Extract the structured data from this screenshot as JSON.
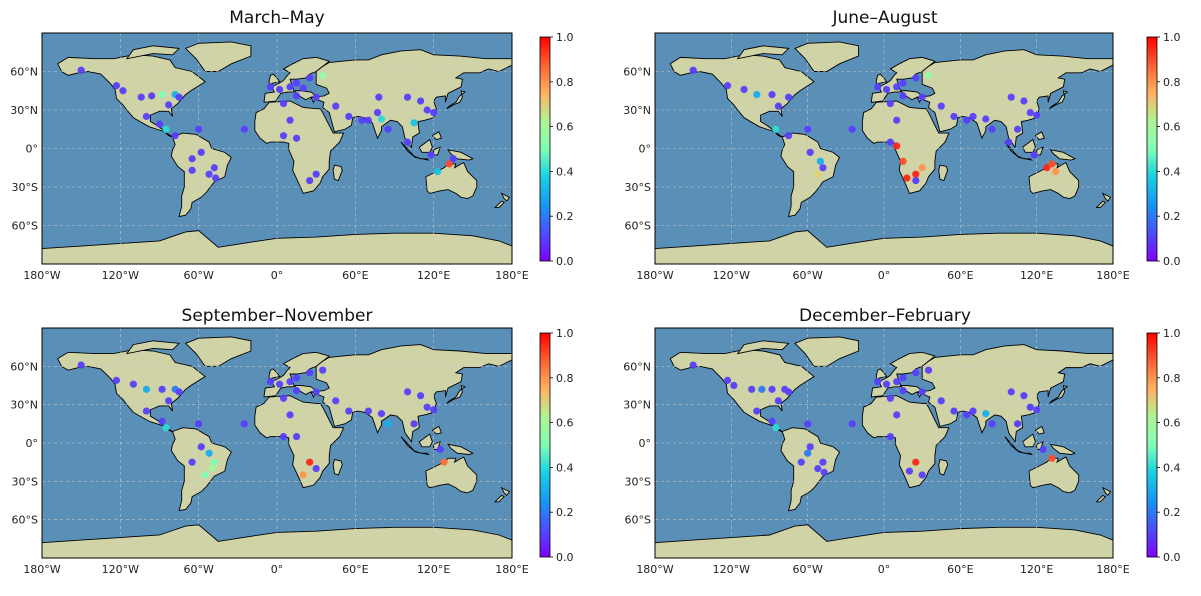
{
  "colors": {
    "ocean": "#5a8fb8",
    "land": "#cfd3a6",
    "ice": "#eef3f8",
    "coast": "#000000",
    "grid": "#c8c8c8"
  },
  "axes": {
    "lon_ticks": [
      -180,
      -120,
      -60,
      0,
      60,
      120,
      180
    ],
    "lon_labels": [
      "180°W",
      "120°W",
      "60°W",
      "0°",
      "60°E",
      "120°E",
      "180°E"
    ],
    "lat_ticks": [
      60,
      30,
      0,
      -30,
      -60
    ],
    "lat_labels": [
      "60°N",
      "30°N",
      "0°",
      "30°S",
      "60°S"
    ],
    "lon_range": [
      -180,
      180
    ],
    "lat_range": [
      -90,
      90
    ]
  },
  "colorbar": {
    "cmap": "rainbow",
    "range": [
      0,
      1
    ],
    "ticks": [
      0.0,
      0.2,
      0.4,
      0.6,
      0.8,
      1.0
    ],
    "labels": [
      "0.0",
      "0.2",
      "0.4",
      "0.6",
      "0.8",
      "1.0"
    ]
  },
  "chart_data": [
    {
      "type": "scatter",
      "title": "March–May",
      "points": [
        [
          -150,
          61,
          0.1
        ],
        [
          -123,
          49,
          0.1
        ],
        [
          -118,
          45,
          0.1
        ],
        [
          -104,
          40,
          0.1
        ],
        [
          -96,
          41,
          0.1
        ],
        [
          -88,
          42,
          0.5
        ],
        [
          -78,
          42,
          0.3
        ],
        [
          -83,
          34,
          0.1
        ],
        [
          -75,
          40,
          0.1
        ],
        [
          -100,
          25,
          0.1
        ],
        [
          -90,
          19,
          0.1
        ],
        [
          -85,
          15,
          0.4
        ],
        [
          -78,
          10,
          0.1
        ],
        [
          -60,
          15,
          0.1
        ],
        [
          -25,
          15,
          0.1
        ],
        [
          -58,
          -3,
          0.1
        ],
        [
          -65,
          -8,
          0.1
        ],
        [
          -48,
          -15,
          0.1
        ],
        [
          -52,
          -20,
          0.1
        ],
        [
          -47,
          -23,
          0.1
        ],
        [
          -65,
          -17,
          0.1
        ],
        [
          -5,
          48,
          0.1
        ],
        [
          2,
          46,
          0.1
        ],
        [
          10,
          48,
          0.1
        ],
        [
          15,
          51,
          0.1
        ],
        [
          20,
          47,
          0.1
        ],
        [
          25,
          55,
          0.1
        ],
        [
          35,
          57,
          0.55
        ],
        [
          30,
          40,
          0.1
        ],
        [
          15,
          41,
          0.1
        ],
        [
          5,
          35,
          0.1
        ],
        [
          10,
          22,
          0.1
        ],
        [
          5,
          10,
          0.1
        ],
        [
          15,
          8,
          0.1
        ],
        [
          30,
          -20,
          0.1
        ],
        [
          25,
          -25,
          0.1
        ],
        [
          55,
          25,
          0.1
        ],
        [
          45,
          33,
          0.1
        ],
        [
          65,
          22,
          0.1
        ],
        [
          70,
          22,
          0.1
        ],
        [
          77,
          28,
          0.1
        ],
        [
          80,
          23,
          0.4
        ],
        [
          85,
          15,
          0.1
        ],
        [
          78,
          40,
          0.1
        ],
        [
          100,
          40,
          0.1
        ],
        [
          110,
          37,
          0.1
        ],
        [
          115,
          30,
          0.1
        ],
        [
          120,
          28,
          0.1
        ],
        [
          105,
          20,
          0.35
        ],
        [
          100,
          5,
          0.1
        ],
        [
          118,
          -5,
          0.1
        ],
        [
          132,
          -12,
          0.9
        ],
        [
          123,
          -18,
          0.35
        ],
        [
          135,
          -8,
          0.1
        ]
      ]
    },
    {
      "type": "scatter",
      "title": "June–August",
      "points": [
        [
          -150,
          61,
          0.1
        ],
        [
          -123,
          49,
          0.1
        ],
        [
          -110,
          46,
          0.1
        ],
        [
          -100,
          42,
          0.3
        ],
        [
          -88,
          42,
          0.1
        ],
        [
          -75,
          40,
          0.1
        ],
        [
          -83,
          33,
          0.1
        ],
        [
          -85,
          15,
          0.4
        ],
        [
          -75,
          10,
          0.1
        ],
        [
          -60,
          15,
          0.1
        ],
        [
          -25,
          15,
          0.1
        ],
        [
          -58,
          -3,
          0.1
        ],
        [
          -50,
          -10,
          0.3
        ],
        [
          -48,
          -15,
          0.1
        ],
        [
          -52,
          -20,
          0.7
        ],
        [
          -5,
          48,
          0.1
        ],
        [
          2,
          46,
          0.1
        ],
        [
          10,
          48,
          0.1
        ],
        [
          15,
          51,
          0.1
        ],
        [
          25,
          55,
          0.1
        ],
        [
          35,
          57,
          0.55
        ],
        [
          30,
          40,
          0.1
        ],
        [
          15,
          41,
          0.1
        ],
        [
          5,
          35,
          0.1
        ],
        [
          10,
          22,
          0.1
        ],
        [
          5,
          5,
          0.1
        ],
        [
          10,
          2,
          0.95
        ],
        [
          15,
          -10,
          0.9
        ],
        [
          18,
          -23,
          0.95
        ],
        [
          25,
          -20,
          0.95
        ],
        [
          30,
          -15,
          0.8
        ],
        [
          25,
          -25,
          0.1
        ],
        [
          45,
          33,
          0.1
        ],
        [
          55,
          25,
          0.1
        ],
        [
          65,
          22,
          0.1
        ],
        [
          70,
          25,
          0.1
        ],
        [
          80,
          23,
          0.1
        ],
        [
          85,
          15,
          0.1
        ],
        [
          100,
          40,
          0.1
        ],
        [
          110,
          37,
          0.1
        ],
        [
          115,
          28,
          0.1
        ],
        [
          120,
          26,
          0.1
        ],
        [
          105,
          15,
          0.1
        ],
        [
          98,
          5,
          0.1
        ],
        [
          118,
          -5,
          0.1
        ],
        [
          128,
          -15,
          0.95
        ],
        [
          132,
          -12,
          0.9
        ],
        [
          135,
          -18,
          0.8
        ]
      ]
    },
    {
      "type": "scatter",
      "title": "September–November",
      "points": [
        [
          -150,
          61,
          0.1
        ],
        [
          -123,
          49,
          0.1
        ],
        [
          -110,
          46,
          0.1
        ],
        [
          -100,
          42,
          0.3
        ],
        [
          -88,
          42,
          0.1
        ],
        [
          -78,
          42,
          0.2
        ],
        [
          -83,
          33,
          0.1
        ],
        [
          -75,
          40,
          0.1
        ],
        [
          -100,
          25,
          0.1
        ],
        [
          -88,
          17,
          0.1
        ],
        [
          -85,
          12,
          0.4
        ],
        [
          -60,
          15,
          0.1
        ],
        [
          -25,
          15,
          0.1
        ],
        [
          -58,
          -3,
          0.1
        ],
        [
          -52,
          -8,
          0.3
        ],
        [
          -48,
          -15,
          0.5
        ],
        [
          -50,
          -20,
          0.6
        ],
        [
          -55,
          -25,
          0.5
        ],
        [
          -65,
          -15,
          0.1
        ],
        [
          -5,
          48,
          0.1
        ],
        [
          2,
          46,
          0.1
        ],
        [
          10,
          48,
          0.1
        ],
        [
          15,
          51,
          0.1
        ],
        [
          25,
          55,
          0.1
        ],
        [
          35,
          57,
          0.1
        ],
        [
          30,
          40,
          0.1
        ],
        [
          15,
          41,
          0.1
        ],
        [
          5,
          35,
          0.1
        ],
        [
          10,
          22,
          0.1
        ],
        [
          5,
          5,
          0.1
        ],
        [
          15,
          5,
          0.1
        ],
        [
          25,
          -15,
          0.95
        ],
        [
          20,
          -25,
          0.8
        ],
        [
          30,
          -20,
          0.1
        ],
        [
          45,
          33,
          0.1
        ],
        [
          55,
          25,
          0.1
        ],
        [
          70,
          25,
          0.1
        ],
        [
          80,
          23,
          0.1
        ],
        [
          85,
          15,
          0.3
        ],
        [
          100,
          40,
          0.1
        ],
        [
          110,
          37,
          0.1
        ],
        [
          115,
          28,
          0.1
        ],
        [
          120,
          26,
          0.1
        ],
        [
          105,
          15,
          0.1
        ],
        [
          128,
          -15,
          0.85
        ],
        [
          125,
          -5,
          0.1
        ]
      ]
    },
    {
      "type": "scatter",
      "title": "December–February",
      "points": [
        [
          -150,
          61,
          0.1
        ],
        [
          -123,
          49,
          0.1
        ],
        [
          -118,
          45,
          0.1
        ],
        [
          -104,
          42,
          0.1
        ],
        [
          -96,
          42,
          0.2
        ],
        [
          -88,
          42,
          0.1
        ],
        [
          -78,
          42,
          0.1
        ],
        [
          -83,
          33,
          0.1
        ],
        [
          -75,
          40,
          0.1
        ],
        [
          -100,
          25,
          0.1
        ],
        [
          -88,
          17,
          0.1
        ],
        [
          -85,
          12,
          0.4
        ],
        [
          -60,
          15,
          0.1
        ],
        [
          -25,
          15,
          0.1
        ],
        [
          -58,
          -3,
          0.1
        ],
        [
          -60,
          -8,
          0.2
        ],
        [
          -65,
          -15,
          0.1
        ],
        [
          -48,
          -15,
          0.1
        ],
        [
          -52,
          -20,
          0.1
        ],
        [
          -47,
          -23,
          0.1
        ],
        [
          -5,
          48,
          0.1
        ],
        [
          2,
          46,
          0.1
        ],
        [
          10,
          48,
          0.1
        ],
        [
          15,
          51,
          0.1
        ],
        [
          25,
          55,
          0.1
        ],
        [
          35,
          57,
          0.1
        ],
        [
          30,
          40,
          0.1
        ],
        [
          15,
          41,
          0.1
        ],
        [
          5,
          35,
          0.1
        ],
        [
          10,
          22,
          0.1
        ],
        [
          5,
          5,
          0.1
        ],
        [
          25,
          -15,
          0.95
        ],
        [
          20,
          -22,
          0.1
        ],
        [
          30,
          -25,
          0.1
        ],
        [
          45,
          33,
          0.1
        ],
        [
          55,
          25,
          0.1
        ],
        [
          65,
          22,
          0.1
        ],
        [
          70,
          25,
          0.1
        ],
        [
          80,
          23,
          0.3
        ],
        [
          85,
          15,
          0.1
        ],
        [
          100,
          40,
          0.1
        ],
        [
          110,
          37,
          0.1
        ],
        [
          115,
          28,
          0.1
        ],
        [
          120,
          26,
          0.1
        ],
        [
          105,
          15,
          0.1
        ],
        [
          132,
          -12,
          0.9
        ],
        [
          125,
          -5,
          0.1
        ]
      ]
    }
  ]
}
